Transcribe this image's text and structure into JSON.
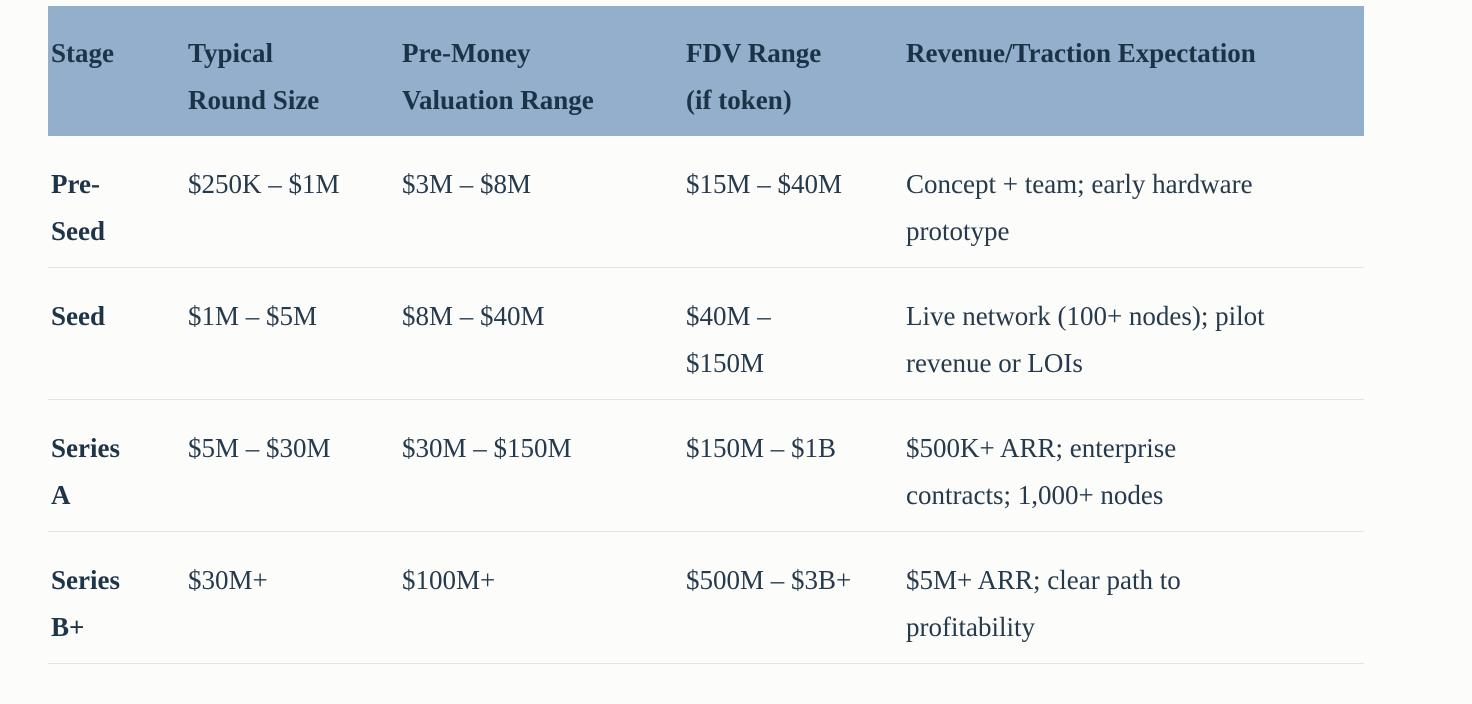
{
  "page": {
    "background_color": "#fcfcfa"
  },
  "table": {
    "header_bg_color": "#93afcb",
    "header_text_color": "#1b3247",
    "body_text_color": "#263a4d",
    "divider_color": "#e4e4e1",
    "columns": [
      {
        "id": "stage",
        "label": "Stage"
      },
      {
        "id": "round_size",
        "label": "Typical\nRound Size"
      },
      {
        "id": "valuation",
        "label": "Pre-Money\nValuation Range"
      },
      {
        "id": "fdv",
        "label": "FDV Range\n(if token)"
      },
      {
        "id": "revenue",
        "label": "Revenue/Traction Expectation"
      }
    ],
    "rows": [
      {
        "stage": "Pre-\nSeed",
        "round_size": "$250K – $1M",
        "valuation": "$3M – $8M",
        "fdv": "$15M – $40M",
        "revenue": "Concept + team; early hardware\nprototype"
      },
      {
        "stage": "Seed",
        "round_size": "$1M – $5M",
        "valuation": "$8M – $40M",
        "fdv": "$40M –\n$150M",
        "revenue": "Live network (100+ nodes); pilot\nrevenue or LOIs"
      },
      {
        "stage": "Series\nA",
        "round_size": "$5M – $30M",
        "valuation": "$30M – $150M",
        "fdv": "$150M – $1B",
        "revenue": "$500K+ ARR; enterprise\ncontracts; 1,000+ nodes"
      },
      {
        "stage": "Series\nB+",
        "round_size": "$30M+",
        "valuation": "$100M+",
        "fdv": "$500M – $3B+",
        "revenue": "$5M+ ARR; clear path to\nprofitability"
      }
    ]
  }
}
